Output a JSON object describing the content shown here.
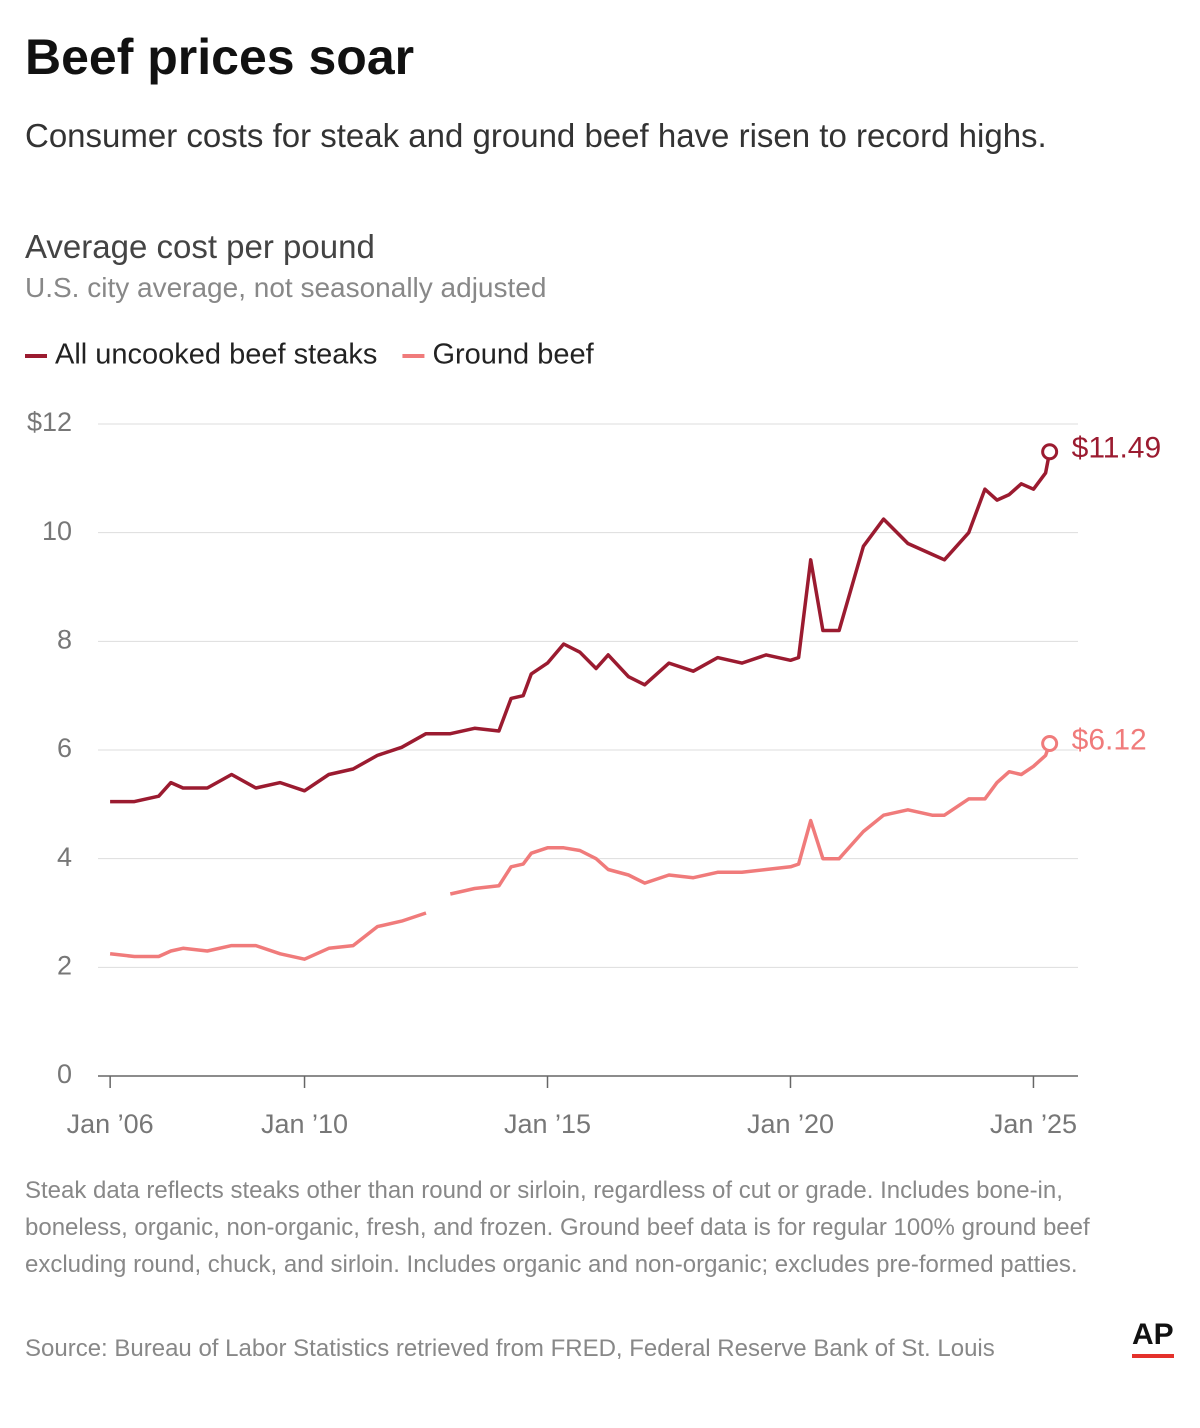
{
  "chart_data": {
    "type": "line",
    "title": "Beef prices soar",
    "subtitle": "Consumer costs for steak and ground beef have risen to record highs.",
    "chart_title": "Average cost per pound",
    "chart_subtitle": "U.S. city average, not seasonally adjusted",
    "x": [
      "2006-01",
      "2006-07",
      "2007-01",
      "2007-04",
      "2007-07",
      "2008-01",
      "2008-07",
      "2009-01",
      "2009-07",
      "2010-01",
      "2010-07",
      "2011-01",
      "2011-07",
      "2012-01",
      "2012-07",
      "2012-10",
      "2013-01",
      "2013-07",
      "2014-01",
      "2014-04",
      "2014-07",
      "2014-09",
      "2015-01",
      "2015-05",
      "2015-09",
      "2016-01",
      "2016-04",
      "2016-09",
      "2017-01",
      "2017-07",
      "2018-01",
      "2018-07",
      "2019-01",
      "2019-07",
      "2020-01",
      "2020-03",
      "2020-06",
      "2020-09",
      "2021-01",
      "2021-07",
      "2021-12",
      "2022-06",
      "2022-12",
      "2023-03",
      "2023-09",
      "2024-01",
      "2024-04",
      "2024-07",
      "2024-10",
      "2025-01",
      "2025-04",
      "2025-05"
    ],
    "series": [
      {
        "name": "All uncooked beef steaks",
        "color": "#9b1b30",
        "end_label": "$11.49",
        "values": [
          5.05,
          5.05,
          5.15,
          5.4,
          5.3,
          5.3,
          5.55,
          5.3,
          5.4,
          5.25,
          5.55,
          5.65,
          5.9,
          6.05,
          6.3,
          6.3,
          6.3,
          6.4,
          6.35,
          6.95,
          7.0,
          7.4,
          7.6,
          7.95,
          7.8,
          7.5,
          7.75,
          7.35,
          7.2,
          7.6,
          7.45,
          7.7,
          7.6,
          7.75,
          7.65,
          7.7,
          9.5,
          8.2,
          8.2,
          9.75,
          10.25,
          9.8,
          9.6,
          9.5,
          10.0,
          10.8,
          10.6,
          10.7,
          10.9,
          10.8,
          11.1,
          11.49
        ]
      },
      {
        "name": "Ground beef",
        "color": "#f07b7b",
        "end_label": "$6.12",
        "values": [
          2.25,
          2.2,
          2.2,
          2.3,
          2.35,
          2.3,
          2.4,
          2.4,
          2.25,
          2.15,
          2.35,
          2.4,
          2.75,
          2.85,
          3.0,
          null,
          3.35,
          3.45,
          3.5,
          3.85,
          3.9,
          4.1,
          4.2,
          4.2,
          4.15,
          4.0,
          3.8,
          3.7,
          3.55,
          3.7,
          3.65,
          3.75,
          3.75,
          3.8,
          3.85,
          3.9,
          4.7,
          4.0,
          4.0,
          4.5,
          4.8,
          4.9,
          4.8,
          4.8,
          5.1,
          5.1,
          5.4,
          5.6,
          5.55,
          5.7,
          5.9,
          6.12
        ]
      }
    ],
    "xlim": [
      "2005-10",
      "2025-12"
    ],
    "xticks": [
      {
        "value": "2006-01",
        "label": "Jan ’06"
      },
      {
        "value": "2010-01",
        "label": "Jan ’10"
      },
      {
        "value": "2015-01",
        "label": "Jan ’15"
      },
      {
        "value": "2020-01",
        "label": "Jan ’20"
      },
      {
        "value": "2025-01",
        "label": "Jan ’25"
      }
    ],
    "ylim": [
      0,
      12
    ],
    "yticks": [
      0,
      2,
      4,
      6,
      8,
      10,
      {
        "value": 12,
        "label": "$12"
      }
    ],
    "grid": true,
    "legend": "top",
    "note": "Steak data reflects steaks other than round or sirloin, regardless of cut or grade. Includes bone-in, boneless, organic, non-organic, fresh, and frozen. Ground beef data is for regular 100% ground beef excluding round, chuck, and sirloin. Includes organic and non-organic; excludes pre-formed patties.",
    "source": "Source: Bureau of Labor Statistics retrieved from FRED, Federal Reserve Bank of St. Louis",
    "logo": "AP"
  }
}
